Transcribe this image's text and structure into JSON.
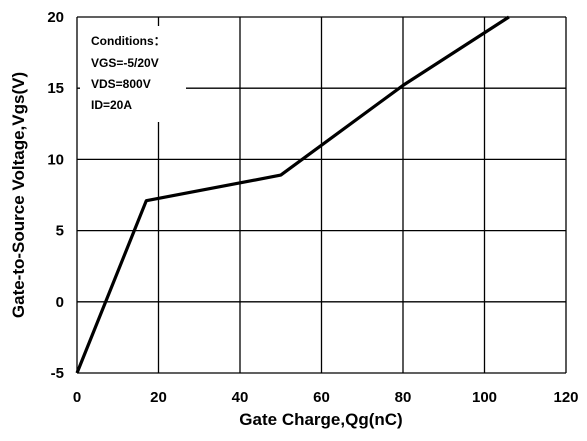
{
  "chart_data": {
    "type": "line",
    "xlabel": "Gate Charge,Qg(nC)",
    "ylabel": "Gate-to-Source Voltage,Vgs(V)",
    "xlim": [
      0,
      120
    ],
    "ylim": [
      -5,
      20
    ],
    "xticks": [
      0,
      20,
      40,
      60,
      80,
      100,
      120
    ],
    "yticks": [
      -5,
      0,
      5,
      10,
      15,
      20
    ],
    "grid": true,
    "series": [
      {
        "x": [
          0,
          17,
          50,
          80,
          106
        ],
        "y": [
          -5,
          7.1,
          8.9,
          15.2,
          20
        ],
        "color": "#000000"
      }
    ],
    "annotation": {
      "title": "Conditions：",
      "lines": [
        "VGS=-5/20V",
        "VDS=800V",
        "ID=20A"
      ]
    }
  }
}
